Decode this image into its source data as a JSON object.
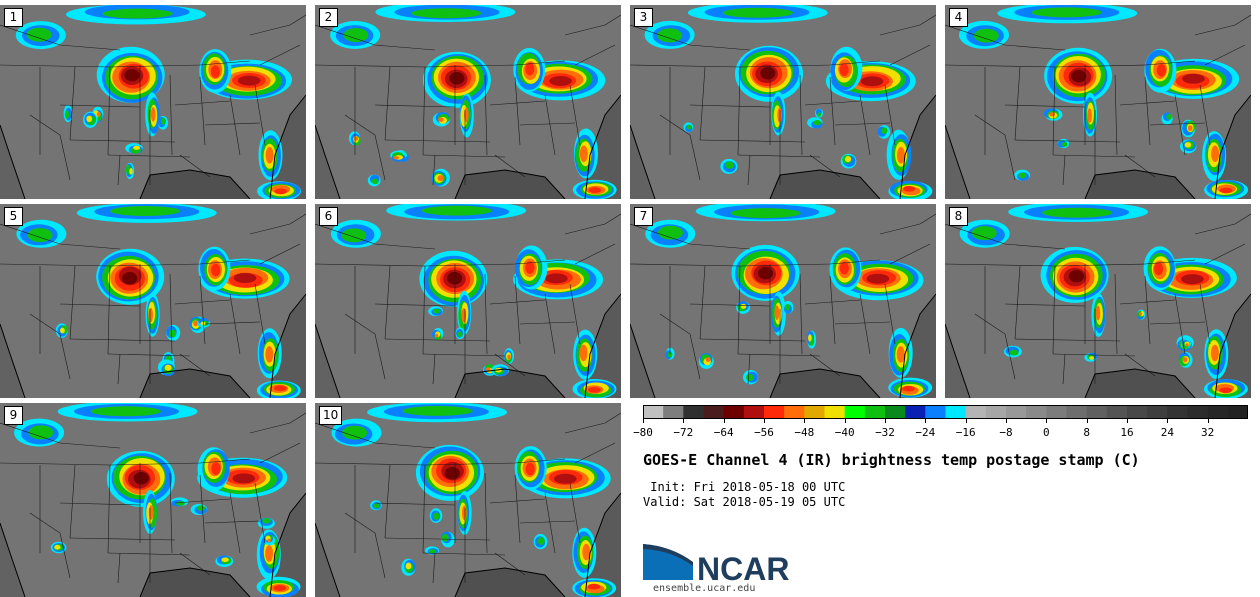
{
  "panels": [
    {
      "number": "1"
    },
    {
      "number": "2"
    },
    {
      "number": "3"
    },
    {
      "number": "4"
    },
    {
      "number": "5"
    },
    {
      "number": "6"
    },
    {
      "number": "7"
    },
    {
      "number": "8"
    },
    {
      "number": "9"
    },
    {
      "number": "10"
    }
  ],
  "colorbar": {
    "range_c": [
      -80,
      40
    ],
    "bin_width_c": 4,
    "colors": [
      "#c0c0c0",
      "#7d7d7d",
      "#303030",
      "#4a1c1c",
      "#6e0000",
      "#b00f0f",
      "#ff2a0a",
      "#ff6e0a",
      "#e0a800",
      "#f0e000",
      "#00ff00",
      "#10c010",
      "#0a8a1c",
      "#0a20b4",
      "#0a80ff",
      "#00e8ff",
      "#b4b4b4",
      "#a6a6a6",
      "#989898",
      "#8a8a8a",
      "#7c7c7c",
      "#6e6e6e",
      "#606060",
      "#545454",
      "#484848",
      "#3e3e3e",
      "#343434",
      "#2c2c2c",
      "#262626",
      "#222222"
    ],
    "ticks": [
      "−80",
      "−72",
      "−64",
      "−56",
      "−48",
      "−40",
      "−32",
      "−24",
      "−16",
      "−8",
      "0",
      "8",
      "16",
      "24",
      "32"
    ],
    "tick_values": [
      -80,
      -72,
      -64,
      -56,
      -48,
      -40,
      -32,
      -24,
      -16,
      -8,
      0,
      8,
      16,
      24,
      32
    ]
  },
  "title": "GOES-E Channel 4 (IR) brightness temp postage stamp (C)",
  "init_line": " Init: Fri 2018-05-18 00 UTC",
  "valid_line": "Valid: Sat 2018-05-19 05 UTC",
  "logo": {
    "name": "NCAR",
    "url": "ensemble.ucar.edu",
    "blue": "#0a6fb6",
    "dark": "#1f3d5c"
  }
}
